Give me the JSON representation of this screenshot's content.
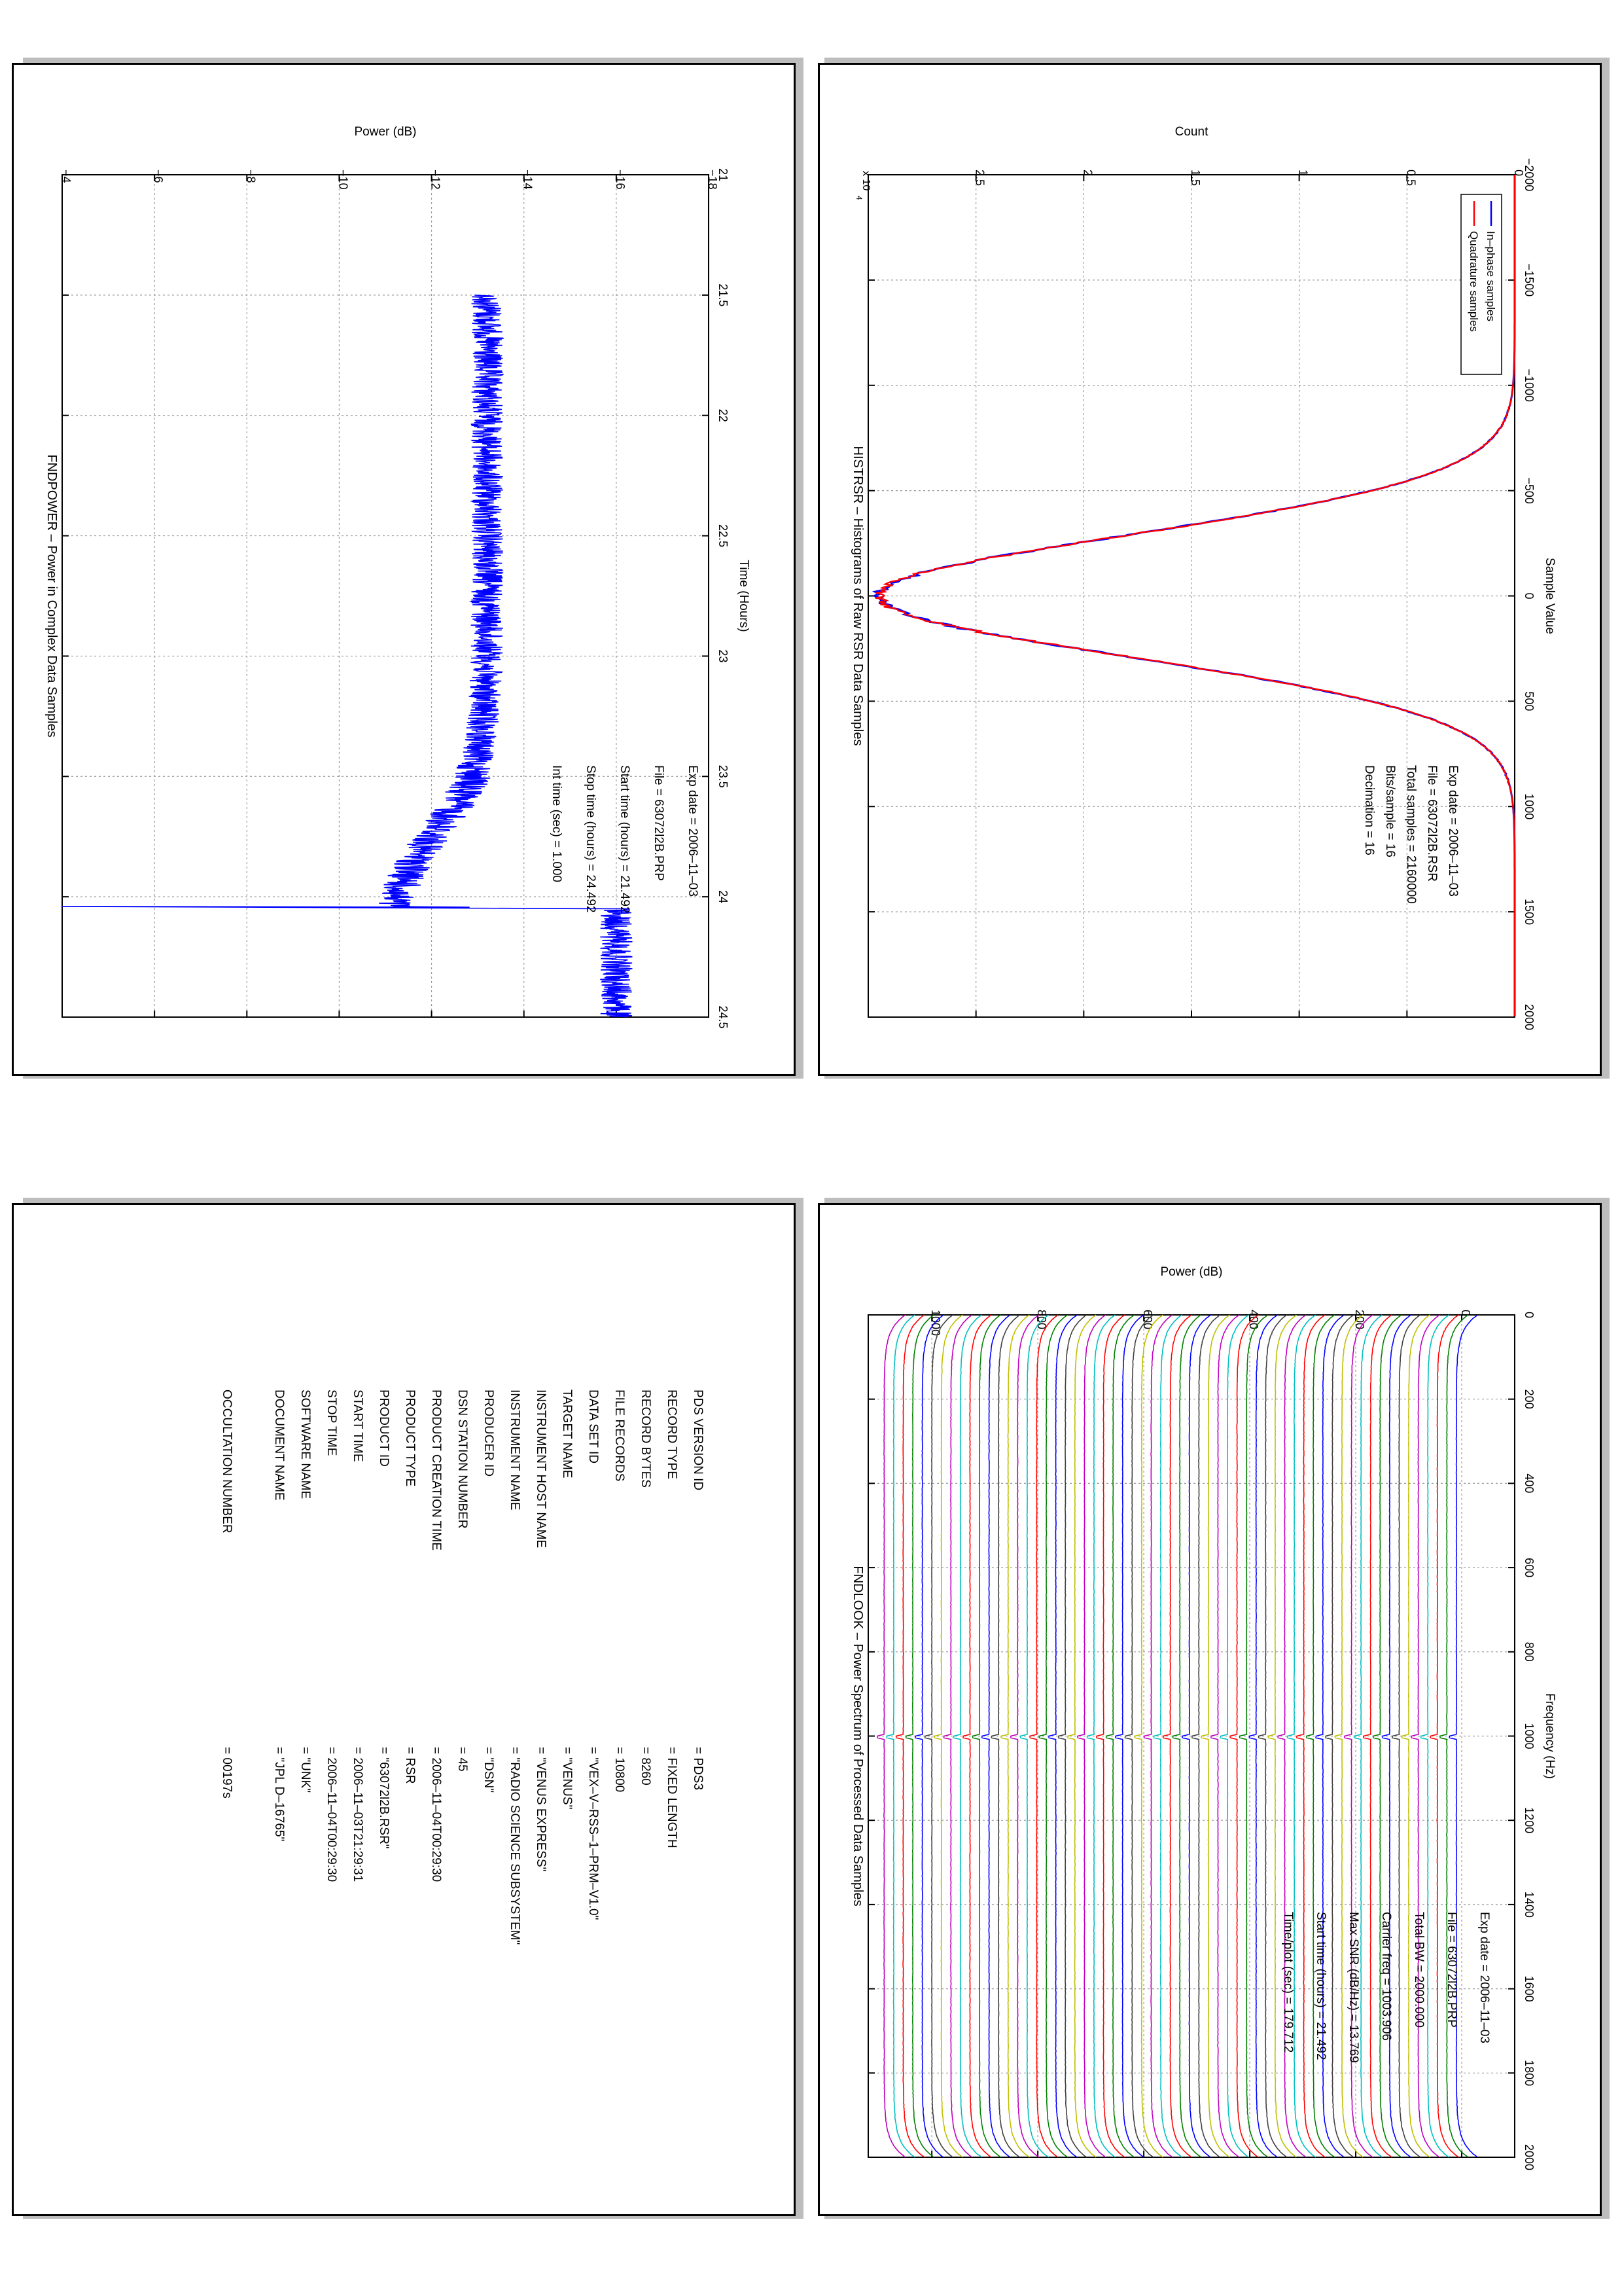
{
  "colors": {
    "inphase": "#0000ff",
    "quadrature": "#ff0000",
    "power": "#0000ff",
    "spectrum_cycle": [
      "#0000ff",
      "#008000",
      "#ff0000",
      "#00bfbf",
      "#bf00bf",
      "#bfbf00",
      "#404040"
    ]
  },
  "hist": {
    "title": "HISTRSR – Histograms of Raw RSR Data Samples",
    "xlabel": "Sample Value",
    "ylabel": "Count",
    "multiplier": "x 10",
    "multiplier_exp": "4",
    "info": [
      {
        "label": "Exp date = 2006–11–03",
        "value": ""
      },
      {
        "label": "File = 63072l2B.RSR",
        "value": ""
      },
      {
        "label": "Total samples =",
        "value": "2160000"
      },
      {
        "label": "Bits/sample    =",
        "value": "16"
      },
      {
        "label": "Decimation    =",
        "value": "16"
      }
    ]
  },
  "power": {
    "title": "FNDPOWER – Power in Complex Data Samples",
    "xlabel": "Time (Hours)",
    "ylabel": "Power (dB)",
    "info": [
      {
        "label": "Exp date = 2006–11–03",
        "value": ""
      },
      {
        "label": "File = 63072l2B.PRP",
        "value": ""
      },
      {
        "label": "Start time (hours) = 21.492",
        "value": ""
      },
      {
        "label": "Stop time (hours)  =",
        "value": "24.492"
      },
      {
        "label": "Int time (sec)  =",
        "value": "1.000"
      }
    ]
  },
  "spectrum": {
    "title": "FNDLOOK – Power Spectrum of Processed Data Samples",
    "xlabel": "Frequency (Hz)",
    "ylabel": "Power (dB)",
    "info": [
      {
        "label": "Exp date = 2006–11–03",
        "value": ""
      },
      {
        "label": "File = 63072l2B.PRP",
        "value": ""
      },
      {
        "label": "Total BW =",
        "value": "2000.000"
      },
      {
        "label": "Carrier freq =",
        "value": "1003.906"
      },
      {
        "label": "Max SNR (dB/Hz) =",
        "value": "13.769"
      },
      {
        "label": "Start time (hours) =",
        "value": "21.492"
      },
      {
        "label": "Time/plot (sec) =",
        "value": "179.712"
      }
    ]
  },
  "label_file": {
    "rows": [
      {
        "key": "PDS VERSION ID",
        "value": "= PDS3"
      },
      {
        "key": "RECORD TYPE",
        "value": "= FIXED LENGTH"
      },
      {
        "key": "RECORD BYTES",
        "value": "= 8260"
      },
      {
        "key": "FILE RECORDS",
        "value": "= 10800"
      },
      {
        "key": "DATA SET ID",
        "value": "= \"VEX–V–RSS–1–PRM–V1.0\""
      },
      {
        "key": "TARGET NAME",
        "value": "= \"VENUS\""
      },
      {
        "key": "INSTRUMENT HOST NAME",
        "value": "= \"VENUS EXPRESS\""
      },
      {
        "key": "INSTRUMENT NAME",
        "value": "= \"RADIO SCIENCE SUBSYSTEM\""
      },
      {
        "key": "PRODUCER ID",
        "value": "= \"DSN\""
      },
      {
        "key": "DSN STATION NUMBER",
        "value": "= 45"
      },
      {
        "key": "PRODUCT CREATION TIME",
        "value": "= 2006–11–04T00:29:30"
      },
      {
        "key": "PRODUCT TYPE",
        "value": "= RSR"
      },
      {
        "key": "PRODUCT ID",
        "value": "= \"63072l2B.RSR\""
      },
      {
        "key": "START TIME",
        "value": "= 2006–11–03T21:29:31"
      },
      {
        "key": "STOP TIME",
        "value": "= 2006–11–04T00:29:30"
      },
      {
        "key": "SOFTWARE NAME",
        "value": "= \"UNK\""
      },
      {
        "key": "DOCUMENT NAME",
        "value": "= \"JPL D–16765\""
      },
      {
        "key": "",
        "value": ""
      },
      {
        "key": "OCCULTATION NUMBER",
        "value": "= 00197s"
      }
    ]
  },
  "chart_data": [
    {
      "type": "line",
      "name": "histogram",
      "title": "HISTRSR – Histograms of Raw RSR Data Samples",
      "xlabel": "Sample Value",
      "ylabel": "Count",
      "y_multiplier": "x 10^4",
      "xlim": [
        -2000,
        2000
      ],
      "ylim": [
        0,
        3
      ],
      "xticks": [
        "−2000",
        "−1500",
        "−1000",
        "−500",
        "0",
        "500",
        "1000",
        "1500",
        "2000"
      ],
      "yticks": [
        "0",
        "0.5",
        "1",
        "1.5",
        "2",
        "2.5"
      ],
      "grid": true,
      "legend_position": "top-left",
      "series": [
        {
          "name": "In–phase samples",
          "color": "#0000ff",
          "distribution": "gaussian",
          "peak_x": 0,
          "peak_y": 2.95,
          "sigma": 290
        },
        {
          "name": "Quadrature samples",
          "color": "#ff0000",
          "distribution": "gaussian",
          "peak_x": 0,
          "peak_y": 2.95,
          "sigma": 290
        }
      ]
    },
    {
      "type": "line",
      "name": "power",
      "title": "FNDPOWER – Power in Complex Data Samples",
      "xlabel": "Time (Hours)",
      "ylabel": "Power (dB)",
      "xlim": [
        21,
        24.5
      ],
      "ylim": [
        -18,
        -4
      ],
      "xticks": [
        "21",
        "21.5",
        "22",
        "22.5",
        "23",
        "23.5",
        "24",
        "24.5"
      ],
      "yticks": [
        "−18",
        "−16",
        "−14",
        "−12",
        "−10",
        "−8",
        "−6",
        "−4"
      ],
      "grid": true,
      "series": [
        {
          "name": "",
          "color": "#0000ff",
          "x": [
            21.5,
            22.0,
            22.5,
            23.0,
            23.3,
            23.5,
            23.6,
            23.7,
            23.8,
            23.9,
            24.0,
            24.04,
            24.05,
            24.1,
            24.5
          ],
          "y": [
            -13.2,
            -13.2,
            -13.2,
            -13.2,
            -13.1,
            -12.9,
            -12.6,
            -12.2,
            -11.8,
            -11.5,
            -11.2,
            -11.2,
            -16.0,
            -16.0,
            -16.0
          ],
          "spike": {
            "x": 24.04,
            "y": -4
          },
          "noise_db": 0.35
        }
      ]
    },
    {
      "type": "line",
      "name": "spectrum",
      "title": "FNDLOOK – Power Spectrum of Processed Data Samples",
      "xlabel": "Frequency (Hz)",
      "ylabel": "Power (dB)",
      "xlim": [
        0,
        2000
      ],
      "ylim": [
        -100,
        1120
      ],
      "xticks": [
        "0",
        "200",
        "400",
        "600",
        "800",
        "1000",
        "1200",
        "1400",
        "1600",
        "1800",
        "2000"
      ],
      "yticks": [
        "0",
        "200",
        "400",
        "600",
        "800",
        "1000"
      ],
      "grid": true,
      "series_count": 61,
      "series_offset_db": 18,
      "series_shape": {
        "edge_rolloff_hz": 70,
        "edge_drop_db": 40,
        "carrier_hz": 1003.906,
        "carrier_peak_db": 13
      }
    }
  ]
}
